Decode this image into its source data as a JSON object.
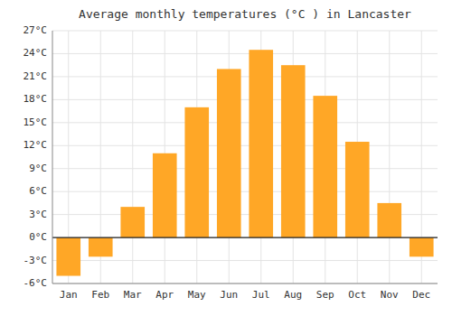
{
  "chart_data": {
    "type": "bar",
    "title": "Average monthly temperatures (°C ) in Lancaster",
    "categories": [
      "Jan",
      "Feb",
      "Mar",
      "Apr",
      "May",
      "Jun",
      "Jul",
      "Aug",
      "Sep",
      "Oct",
      "Nov",
      "Dec"
    ],
    "values": [
      -5.0,
      -2.5,
      4.0,
      11.0,
      17.0,
      22.0,
      24.5,
      22.5,
      18.5,
      12.5,
      4.5,
      -2.5
    ],
    "color": "#FFA726",
    "ylim": [
      -6,
      27
    ],
    "yticks": [
      {
        "value": -6,
        "label": "-6°C"
      },
      {
        "value": -3,
        "label": "-3°C"
      },
      {
        "value": 0,
        "label": "0°C"
      },
      {
        "value": 3,
        "label": "3°C"
      },
      {
        "value": 6,
        "label": "6°C"
      },
      {
        "value": 9,
        "label": "9°C"
      },
      {
        "value": 12,
        "label": "12°C"
      },
      {
        "value": 15,
        "label": "15°C"
      },
      {
        "value": 18,
        "label": "18°C"
      },
      {
        "value": 21,
        "label": "21°C"
      },
      {
        "value": 24,
        "label": "24°C"
      },
      {
        "value": 27,
        "label": "27°C"
      }
    ],
    "grid": true
  }
}
